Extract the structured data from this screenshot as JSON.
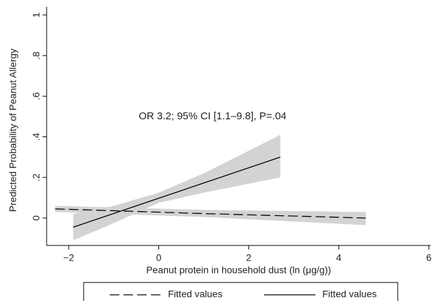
{
  "chart_data": {
    "type": "line",
    "annotation": "OR 3.2; 95% CI [1.1–9.8], P=.04",
    "xlabel": "Peanut protein in household dust (ln (μg/g))",
    "ylabel": "Predicted Probability of Peanut Allergy",
    "xlim": [
      -2.49,
      6.04
    ],
    "ylim": [
      -0.135,
      1.04
    ],
    "xticks": [
      {
        "value": -2,
        "label": "−2"
      },
      0,
      2,
      4,
      6
    ],
    "yticks": [
      0,
      {
        "value": 0.2,
        "label": ".2"
      },
      {
        "value": 0.4,
        "label": ".4"
      },
      {
        "value": 0.6,
        "label": ".6"
      },
      {
        "value": 0.8,
        "label": ".8"
      },
      1
    ],
    "grid": false,
    "band_color": "#d3d3d3",
    "series": [
      {
        "name": "Fitted values",
        "color": "#000000",
        "dash": true,
        "x": [
          -2.3,
          1,
          4.6
        ],
        "values": [
          0.045,
          0.022,
          0.0
        ],
        "ci_lower": [
          0.03,
          0.005,
          -0.035
        ],
        "ci_upper": [
          0.06,
          0.04,
          0.03
        ]
      },
      {
        "name": "Fitted values",
        "color": "#000000",
        "dash": false,
        "x": [
          -1.9,
          -1,
          0,
          1,
          2.7
        ],
        "values": [
          -0.045,
          0.0225,
          0.0975,
          0.1725,
          0.3
        ],
        "ci_lower": [
          -0.11,
          -0.025,
          0.075,
          0.125,
          0.2
        ],
        "ci_upper": [
          0.02,
          0.06,
          0.125,
          0.22,
          0.41
        ]
      }
    ]
  }
}
